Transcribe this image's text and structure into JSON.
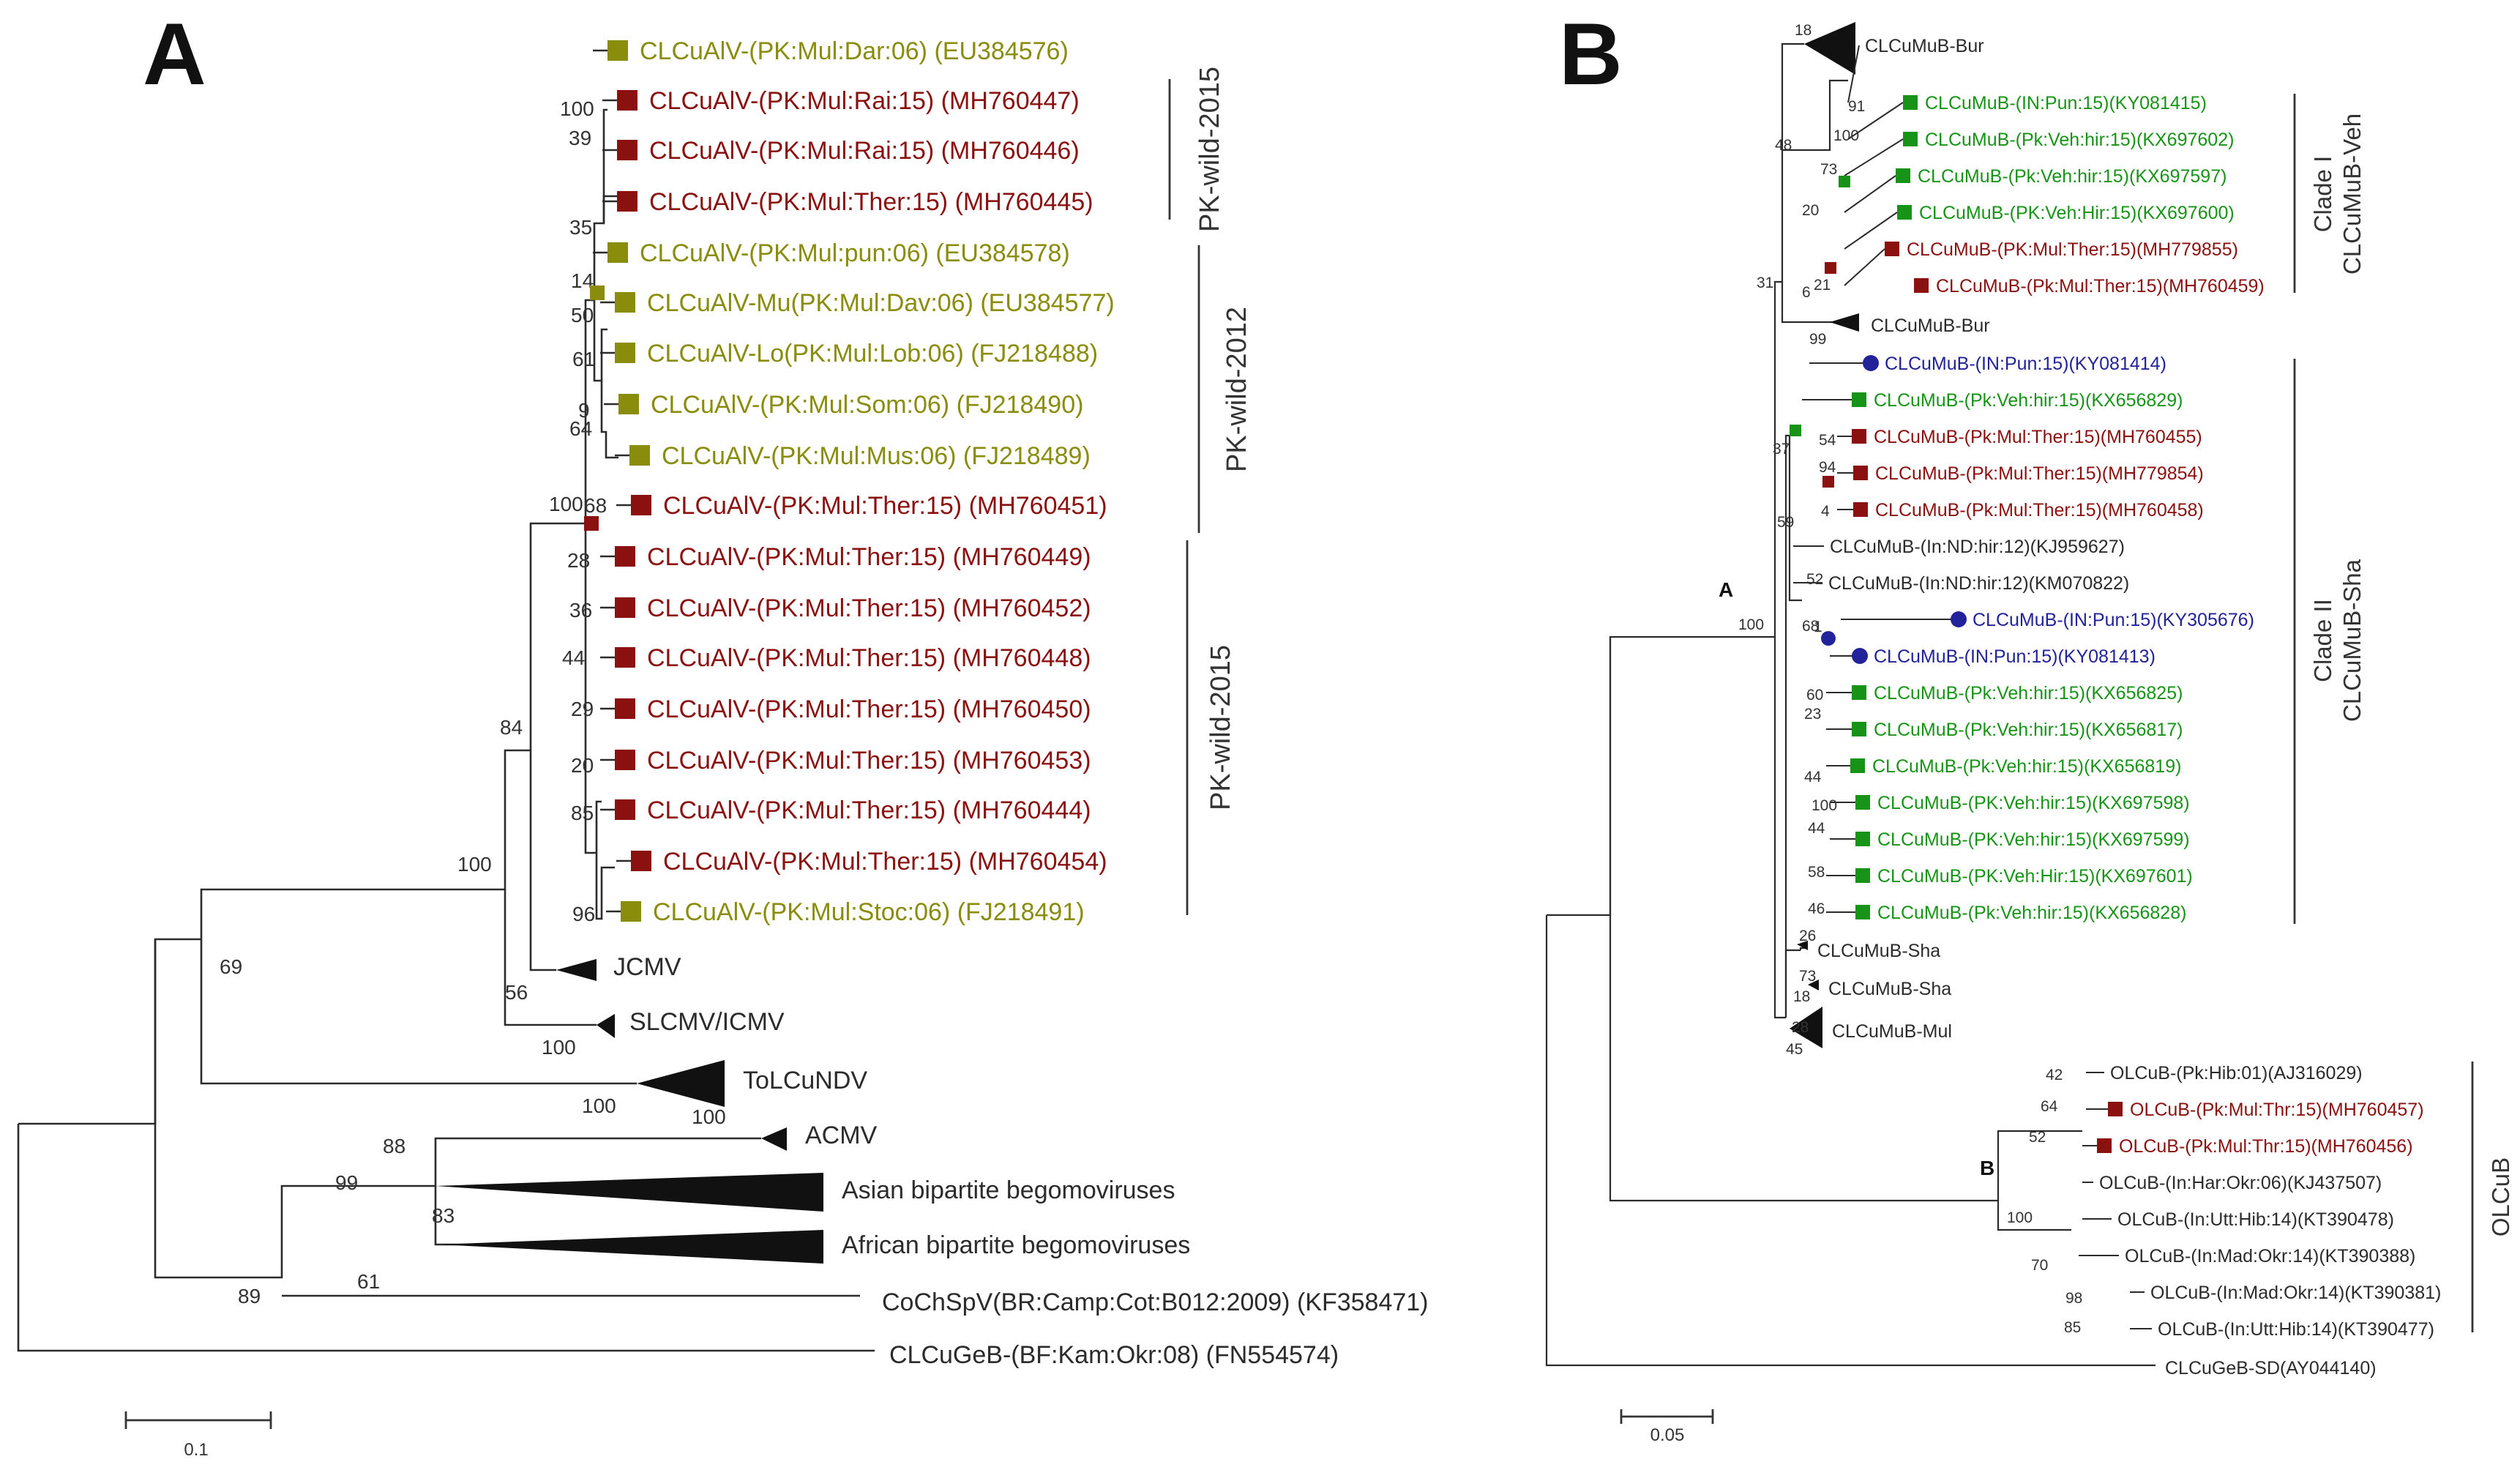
{
  "colors": {
    "olive": "#8a8c0c",
    "red": "#8b1010",
    "green": "#179417",
    "blue": "#22229a",
    "black": "#2b2b2b"
  },
  "panel_a": {
    "panel_label": "A",
    "clade_labels": [
      "PK-wild-2015",
      "PK-wild-2012",
      "PK-wild-2015"
    ],
    "scale_label": "0.1",
    "taxa": [
      {
        "name": "CLCuAlV-(PK:Mul:Dar:06) (EU384576)",
        "color": "olive"
      },
      {
        "name": "CLCuAlV-(PK:Mul:Rai:15) (MH760447)",
        "color": "red"
      },
      {
        "name": "CLCuAlV-(PK:Mul:Rai:15) (MH760446)",
        "color": "red"
      },
      {
        "name": "CLCuAlV-(PK:Mul:Ther:15) (MH760445)",
        "color": "red"
      },
      {
        "name": "CLCuAlV-(PK:Mul:pun:06) (EU384578)",
        "color": "olive"
      },
      {
        "name": "CLCuAlV-Mu(PK:Mul:Dav:06) (EU384577)",
        "color": "olive"
      },
      {
        "name": "CLCuAlV-Lo(PK:Mul:Lob:06) (FJ218488)",
        "color": "olive"
      },
      {
        "name": "CLCuAlV-(PK:Mul:Som:06) (FJ218490)",
        "color": "olive"
      },
      {
        "name": "CLCuAlV-(PK:Mul:Mus:06) (FJ218489)",
        "color": "olive"
      },
      {
        "name": "CLCuAlV-(PK:Mul:Ther:15) (MH760451)",
        "color": "red"
      },
      {
        "name": "CLCuAlV-(PK:Mul:Ther:15) (MH760449)",
        "color": "red"
      },
      {
        "name": "CLCuAlV-(PK:Mul:Ther:15) (MH760452)",
        "color": "red"
      },
      {
        "name": "CLCuAlV-(PK:Mul:Ther:15) (MH760448)",
        "color": "red"
      },
      {
        "name": "CLCuAlV-(PK:Mul:Ther:15) (MH760450)",
        "color": "red"
      },
      {
        "name": "CLCuAlV-(PK:Mul:Ther:15) (MH760453)",
        "color": "red"
      },
      {
        "name": "CLCuAlV-(PK:Mul:Ther:15) (MH760444)",
        "color": "red"
      },
      {
        "name": "CLCuAlV-(PK:Mul:Ther:15) (MH760454)",
        "color": "red"
      },
      {
        "name": "CLCuAlV-(PK:Mul:Stoc:06) (FJ218491)",
        "color": "olive"
      },
      {
        "name": "JCMV",
        "color": "black"
      },
      {
        "name": "SLCMV/ICMV",
        "color": "black"
      },
      {
        "name": "ToLCuNDV",
        "color": "black"
      },
      {
        "name": "ACMV",
        "color": "black"
      },
      {
        "name": "Asian bipartite begomoviruses",
        "color": "black"
      },
      {
        "name": "African bipartite begomoviruses",
        "color": "black"
      },
      {
        "name": "CoChSpV(BR:Camp:Cot:B012:2009) (KF358471)",
        "color": "black"
      },
      {
        "name": "CLCuGeB-(BF:Kam:Okr:08) (FN554574)",
        "color": "black"
      }
    ],
    "bootstrap": [
      "100",
      "39",
      "35",
      "14",
      "50",
      "61",
      "9",
      "64",
      "100",
      "68",
      "28",
      "36",
      "44",
      "29",
      "20",
      "85",
      "96",
      "84",
      "100",
      "69",
      "56",
      "100",
      "100",
      "100",
      "88",
      "83",
      "99",
      "61",
      "89"
    ]
  },
  "panel_b": {
    "panel_label": "B",
    "clade_labels": [
      "Clade I",
      "CLCuMuB-Veh",
      "Clade II",
      "CLCuMuB-Sha",
      "OLCuB"
    ],
    "node_labels": [
      "A",
      "B"
    ],
    "scale_label": "0.05",
    "taxa": [
      {
        "name": "CLCuMuB-Bur",
        "color": "black"
      },
      {
        "name": "CLCuMuB-(IN:Pun:15)(KY081415)",
        "color": "green"
      },
      {
        "name": "CLCuMuB-(Pk:Veh:hir:15)(KX697602)",
        "color": "green"
      },
      {
        "name": "CLCuMuB-(Pk:Veh:hir:15)(KX697597)",
        "color": "green"
      },
      {
        "name": "CLCuMuB-(PK:Veh:Hir:15)(KX697600)",
        "color": "green"
      },
      {
        "name": "CLCuMuB-(PK:Mul:Ther:15)(MH779855)",
        "color": "red"
      },
      {
        "name": "CLCuMuB-(Pk:Mul:Ther:15)(MH760459)",
        "color": "red"
      },
      {
        "name": "CLCuMuB-Bur",
        "color": "black"
      },
      {
        "name": "CLCuMuB-(IN:Pun:15)(KY081414)",
        "color": "blue"
      },
      {
        "name": "CLCuMuB-(Pk:Veh:hir:15)(KX656829)",
        "color": "green"
      },
      {
        "name": "CLCuMuB-(Pk:Mul:Ther:15)(MH760455)",
        "color": "red"
      },
      {
        "name": "CLCuMuB-(Pk:Mul:Ther:15)(MH779854)",
        "color": "red"
      },
      {
        "name": "CLCuMuB-(Pk:Mul:Ther:15)(MH760458)",
        "color": "red"
      },
      {
        "name": "CLCuMuB-(In:ND:hir:12)(KJ959627)",
        "color": "black"
      },
      {
        "name": "CLCuMuB-(In:ND:hir:12)(KM070822)",
        "color": "black"
      },
      {
        "name": "CLCuMuB-(IN:Pun:15)(KY305676)",
        "color": "blue"
      },
      {
        "name": "CLCuMuB-(IN:Pun:15)(KY081413)",
        "color": "blue"
      },
      {
        "name": "CLCuMuB-(Pk:Veh:hir:15)(KX656825)",
        "color": "green"
      },
      {
        "name": "CLCuMuB-(Pk:Veh:hir:15)(KX656817)",
        "color": "green"
      },
      {
        "name": "CLCuMuB-(Pk:Veh:hir:15)(KX656819)",
        "color": "green"
      },
      {
        "name": "CLCuMuB-(PK:Veh:hir:15)(KX697598)",
        "color": "green"
      },
      {
        "name": "CLCuMuB-(PK:Veh:hir:15)(KX697599)",
        "color": "green"
      },
      {
        "name": "CLCuMuB-(PK:Veh:Hir:15)(KX697601)",
        "color": "green"
      },
      {
        "name": "CLCuMuB-(Pk:Veh:hir:15)(KX656828)",
        "color": "green"
      },
      {
        "name": "CLCuMuB-Sha",
        "color": "black"
      },
      {
        "name": "CLCuMuB-Sha",
        "color": "black"
      },
      {
        "name": "CLCuMuB-Mul",
        "color": "black"
      },
      {
        "name": "OLCuB-(Pk:Hib:01)(AJ316029)",
        "color": "black"
      },
      {
        "name": "OLCuB-(Pk:Mul:Thr:15)(MH760457)",
        "color": "red"
      },
      {
        "name": "OLCuB-(Pk:Mul:Thr:15)(MH760456)",
        "color": "red"
      },
      {
        "name": "OLCuB-(In:Har:Okr:06)(KJ437507)",
        "color": "black"
      },
      {
        "name": "OLCuB-(In:Utt:Hib:14)(KT390478)",
        "color": "black"
      },
      {
        "name": "OLCuB-(In:Mad:Okr:14)(KT390388)",
        "color": "black"
      },
      {
        "name": "OLCuB-(In:Mad:Okr:14)(KT390381)",
        "color": "black"
      },
      {
        "name": "OLCuB-(In:Utt:Hib:14)(KT390477)",
        "color": "black"
      },
      {
        "name": "CLCuGeB-SD(AY044140)",
        "color": "black"
      }
    ],
    "bootstrap": [
      "18",
      "91",
      "100",
      "73",
      "20",
      "21",
      "6",
      "48",
      "99",
      "31",
      "54",
      "94",
      "4",
      "37",
      "59",
      "52",
      "68",
      "1",
      "60",
      "23",
      "44",
      "100",
      "44",
      "58",
      "46",
      "26",
      "73",
      "18",
      "28",
      "45",
      "100",
      "42",
      "64",
      "52",
      "100",
      "70",
      "98",
      "85"
    ]
  }
}
